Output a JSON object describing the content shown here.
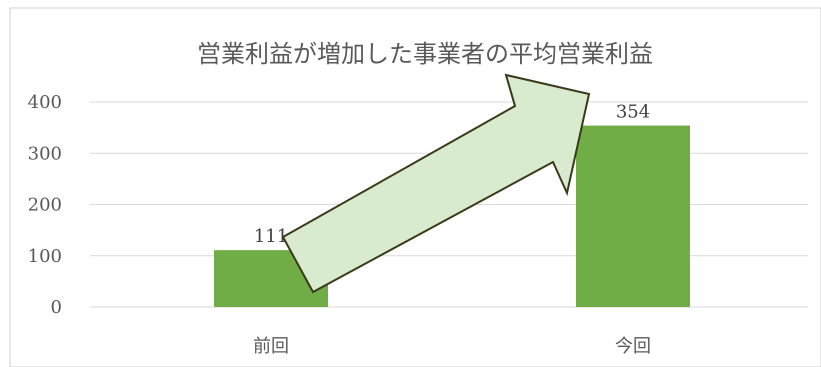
{
  "chart_data": {
    "type": "bar",
    "title": "営業利益が増加した事業者の平均営業利益",
    "categories": [
      "前回",
      "今回"
    ],
    "values": [
      111,
      354
    ],
    "data_labels": [
      "111",
      "354"
    ],
    "xlabel": "",
    "ylabel": "",
    "ylim": [
      0,
      400
    ],
    "yticks": [
      0,
      100,
      200,
      300,
      400
    ],
    "ytick_labels": [
      "0",
      "100",
      "200",
      "300",
      "400"
    ],
    "grid": true,
    "legend": "none",
    "annotation": "arrow-up-right",
    "colors": {
      "bar": "#70AD47",
      "grid": "#D9D9D9",
      "text": "#595959",
      "arrow_fill": "#D8EBCF",
      "arrow_stroke": "#3A3A1A",
      "frame_border": "#D0D0D0"
    }
  }
}
